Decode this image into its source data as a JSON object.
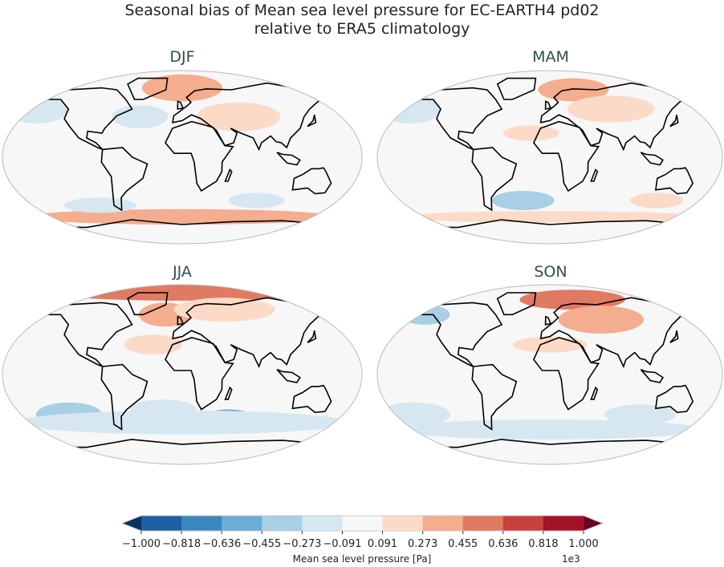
{
  "title_line1": "Seasonal bias of Mean sea level pressure for EC-EARTH4 pd02",
  "title_line2": "relative to ERA5 climatology",
  "panels": [
    {
      "label": "DJF",
      "anomalies": [
        {
          "lon": 0,
          "lat": 72,
          "rlon": 50,
          "rlat": 14,
          "value": 300
        },
        {
          "lon": 60,
          "lat": 42,
          "rlon": 45,
          "rlat": 15,
          "value": 200
        },
        {
          "lon": -160,
          "lat": 50,
          "rlon": 35,
          "rlat": 15,
          "value": -200
        },
        {
          "lon": -45,
          "lat": 42,
          "rlon": 30,
          "rlat": 12,
          "value": -200
        },
        {
          "lon": 0,
          "lat": -62,
          "rlon": 180,
          "rlat": 8,
          "value": 300
        },
        {
          "lon": -90,
          "lat": -50,
          "rlon": 40,
          "rlat": 8,
          "value": -150
        },
        {
          "lon": 80,
          "lat": -45,
          "rlon": 30,
          "rlat": 8,
          "value": -200
        }
      ]
    },
    {
      "label": "MAM",
      "anomalies": [
        {
          "lon": 30,
          "lat": 70,
          "rlon": 45,
          "rlat": 12,
          "value": 400
        },
        {
          "lon": 70,
          "lat": 50,
          "rlon": 50,
          "rlat": 14,
          "value": 200
        },
        {
          "lon": -160,
          "lat": 50,
          "rlon": 35,
          "rlat": 15,
          "value": -200
        },
        {
          "lon": -30,
          "lat": -45,
          "rlon": 35,
          "rlat": 10,
          "value": -300
        },
        {
          "lon": 120,
          "lat": -45,
          "rlon": 30,
          "rlat": 8,
          "value": 200
        },
        {
          "lon": 0,
          "lat": -62,
          "rlon": 180,
          "rlat": 6,
          "value": 200
        },
        {
          "lon": -20,
          "lat": 25,
          "rlon": 30,
          "rlat": 8,
          "value": 200
        }
      ]
    },
    {
      "label": "JJA",
      "anomalies": [
        {
          "lon": 0,
          "lat": 82,
          "rlon": 180,
          "rlat": 8,
          "value": 500
        },
        {
          "lon": -20,
          "lat": 60,
          "rlon": 30,
          "rlat": 12,
          "value": 400
        },
        {
          "lon": 50,
          "lat": 65,
          "rlon": 60,
          "rlat": 12,
          "value": 200
        },
        {
          "lon": 50,
          "lat": -45,
          "rlon": 30,
          "rlat": 10,
          "value": -500
        },
        {
          "lon": -120,
          "lat": -40,
          "rlon": 35,
          "rlat": 12,
          "value": -350
        },
        {
          "lon": -20,
          "lat": -35,
          "rlon": 35,
          "rlat": 10,
          "value": -250
        },
        {
          "lon": 0,
          "lat": -48,
          "rlon": 180,
          "rlat": 12,
          "value": -150
        },
        {
          "lon": -30,
          "lat": 30,
          "rlon": 30,
          "rlat": 10,
          "value": 200
        }
      ]
    },
    {
      "label": "SON",
      "anomalies": [
        {
          "lon": 30,
          "lat": 75,
          "rlon": 70,
          "rlat": 10,
          "value": 500
        },
        {
          "lon": 60,
          "lat": 55,
          "rlon": 50,
          "rlat": 14,
          "value": 300
        },
        {
          "lon": -150,
          "lat": 60,
          "rlon": 30,
          "rlat": 10,
          "value": -300
        },
        {
          "lon": -150,
          "lat": -40,
          "rlon": 40,
          "rlat": 12,
          "value": -200
        },
        {
          "lon": 100,
          "lat": -40,
          "rlon": 40,
          "rlat": 10,
          "value": -200
        },
        {
          "lon": 0,
          "lat": 30,
          "rlon": 40,
          "rlat": 8,
          "value": 200
        },
        {
          "lon": 0,
          "lat": -55,
          "rlon": 180,
          "rlat": 10,
          "value": -150
        }
      ]
    }
  ],
  "colorbar": {
    "label": "Mean sea level pressure [Pa]",
    "multiplier": "1e3",
    "ticks": [
      "−1.000",
      "−0.818",
      "−0.636",
      "−0.455",
      "−0.273",
      "−0.091",
      "0.091",
      "0.273",
      "0.455",
      "0.636",
      "0.818",
      "1.000"
    ],
    "bounds": [
      -1000,
      -818,
      -636,
      -455,
      -273,
      -91,
      91,
      273,
      455,
      636,
      818,
      1000
    ],
    "colors": [
      "#1f5fa5",
      "#3a87c0",
      "#6dadd3",
      "#a8cfe4",
      "#d6e7f1",
      "#f7f7f7",
      "#fbdbc8",
      "#f4ad8e",
      "#e17a62",
      "#c7413d",
      "#a21228"
    ],
    "under_color": "#083262",
    "over_color": "#6d0321"
  }
}
